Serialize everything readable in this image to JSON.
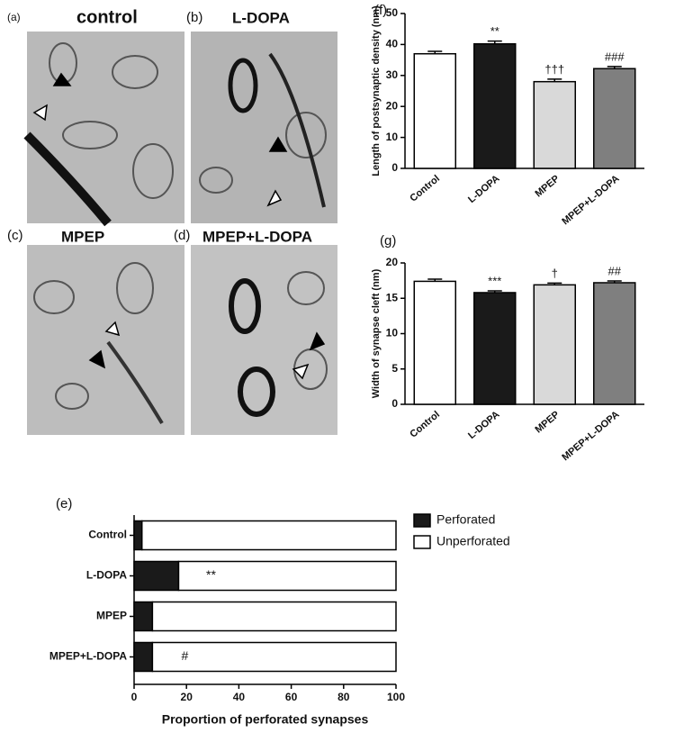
{
  "micrographs": [
    {
      "letter": "(a)",
      "label": "control"
    },
    {
      "letter": "(b)",
      "label": "L-DOPA"
    },
    {
      "letter": "(c)",
      "label": "MPEP"
    },
    {
      "letter": "(d)",
      "label": "MPEP+L-DOPA"
    }
  ],
  "chart_data": [
    {
      "type": "bar",
      "panel": "(f)",
      "y_label": "Length of postsynaptic density (nm)",
      "categories": [
        "Control",
        "L-DOPA",
        "MPEP",
        "MPEP+L-DOPA"
      ],
      "values": [
        37,
        40.2,
        28,
        32.2
      ],
      "errors": [
        0.8,
        0.9,
        0.8,
        0.7
      ],
      "colors": [
        "#ffffff",
        "#1a1a1a",
        "#d9d9d9",
        "#7f7f7f"
      ],
      "ylim": [
        0,
        50
      ],
      "yticks": [
        0,
        10,
        20,
        30,
        40,
        50
      ],
      "annotations": [
        {
          "category": "L-DOPA",
          "text": "**"
        },
        {
          "category": "MPEP",
          "text": "†††"
        },
        {
          "category": "MPEP+L-DOPA",
          "text": "###"
        }
      ]
    },
    {
      "type": "bar",
      "panel": "(g)",
      "y_label": "Width of synapse cleft (nm)",
      "categories": [
        "Control",
        "L-DOPA",
        "MPEP",
        "MPEP+L-DOPA"
      ],
      "values": [
        17.4,
        15.8,
        16.9,
        17.2
      ],
      "errors": [
        0.3,
        0.25,
        0.25,
        0.25
      ],
      "colors": [
        "#ffffff",
        "#1a1a1a",
        "#d9d9d9",
        "#7f7f7f"
      ],
      "ylim": [
        0,
        20
      ],
      "yticks": [
        0,
        5,
        10,
        15,
        20
      ],
      "annotations": [
        {
          "category": "L-DOPA",
          "text": "***"
        },
        {
          "category": "MPEP",
          "text": "†"
        },
        {
          "category": "MPEP+L-DOPA",
          "text": "##"
        }
      ]
    },
    {
      "type": "hbar_stacked",
      "panel": "(e)",
      "x_label": "Proportion of perforated synapses",
      "categories": [
        "Control",
        "L-DOPA",
        "MPEP",
        "MPEP+L-DOPA"
      ],
      "series": [
        {
          "name": "Perforated",
          "color": "#1a1a1a",
          "values": [
            3,
            17,
            7,
            7
          ]
        },
        {
          "name": "Unperforated",
          "color": "#ffffff",
          "values": [
            97,
            83,
            93,
            93
          ]
        }
      ],
      "xlim": [
        0,
        100
      ],
      "xticks": [
        0,
        20,
        40,
        60,
        80,
        100
      ],
      "annotations": [
        {
          "category": "L-DOPA",
          "text": "**"
        },
        {
          "category": "MPEP+L-DOPA",
          "text": "#"
        }
      ]
    }
  ]
}
